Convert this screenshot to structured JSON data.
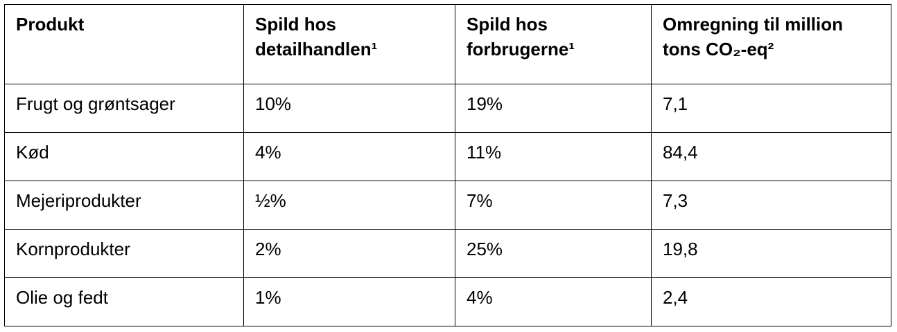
{
  "table": {
    "header": [
      [
        "Produkt"
      ],
      [
        "Spild hos",
        "detailhandlen¹"
      ],
      [
        "Spild hos",
        "forbrugerne¹"
      ],
      [
        "Omregning til million",
        "tons CO₂-eq²"
      ]
    ],
    "rows": [
      [
        "Frugt og grøntsager",
        "10%",
        "19%",
        "7,1"
      ],
      [
        "Kød",
        "4%",
        "11%",
        "84,4"
      ],
      [
        "Mejeriprodukter",
        "½%",
        "7%",
        "7,3"
      ],
      [
        "Kornprodukter",
        "2%",
        "25%",
        "19,8"
      ],
      [
        "Olie og fedt",
        "1%",
        "4%",
        "2,4"
      ]
    ]
  }
}
